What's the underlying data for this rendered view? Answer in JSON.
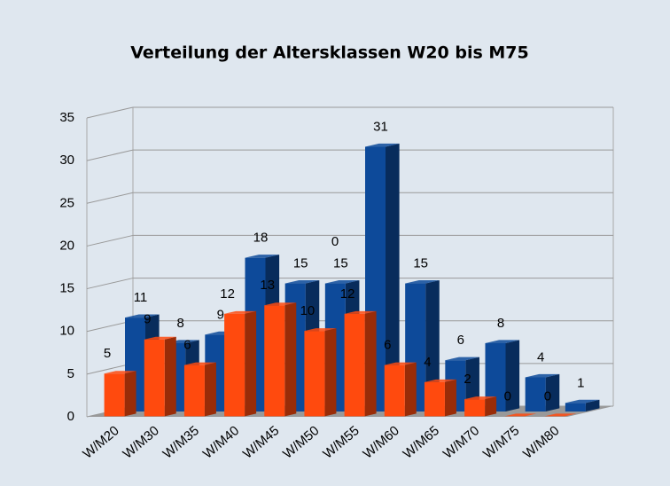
{
  "chart_data": {
    "type": "bar3d",
    "title": "Verteilung der Altersklassen W20 bis M75",
    "categories": [
      "W/M20",
      "W/M30",
      "W/M35",
      "W/M40",
      "W/M45",
      "W/M50",
      "W/M55",
      "W/M60",
      "W/M65",
      "W/M70",
      "W/M75",
      "W/M80"
    ],
    "series": [
      {
        "color": "#0d4a9a",
        "values": [
          11,
          8,
          9,
          18,
          15,
          15,
          31,
          15,
          6,
          8,
          4,
          1
        ]
      },
      {
        "color": "#ff4a0e",
        "values": [
          5,
          9,
          6,
          12,
          13,
          10,
          12,
          6,
          4,
          2,
          0,
          0
        ]
      }
    ],
    "annotation": "0",
    "ylim": [
      0,
      35
    ],
    "yticks": [
      0,
      5,
      10,
      15,
      20,
      25,
      30,
      35
    ],
    "grid": true
  }
}
